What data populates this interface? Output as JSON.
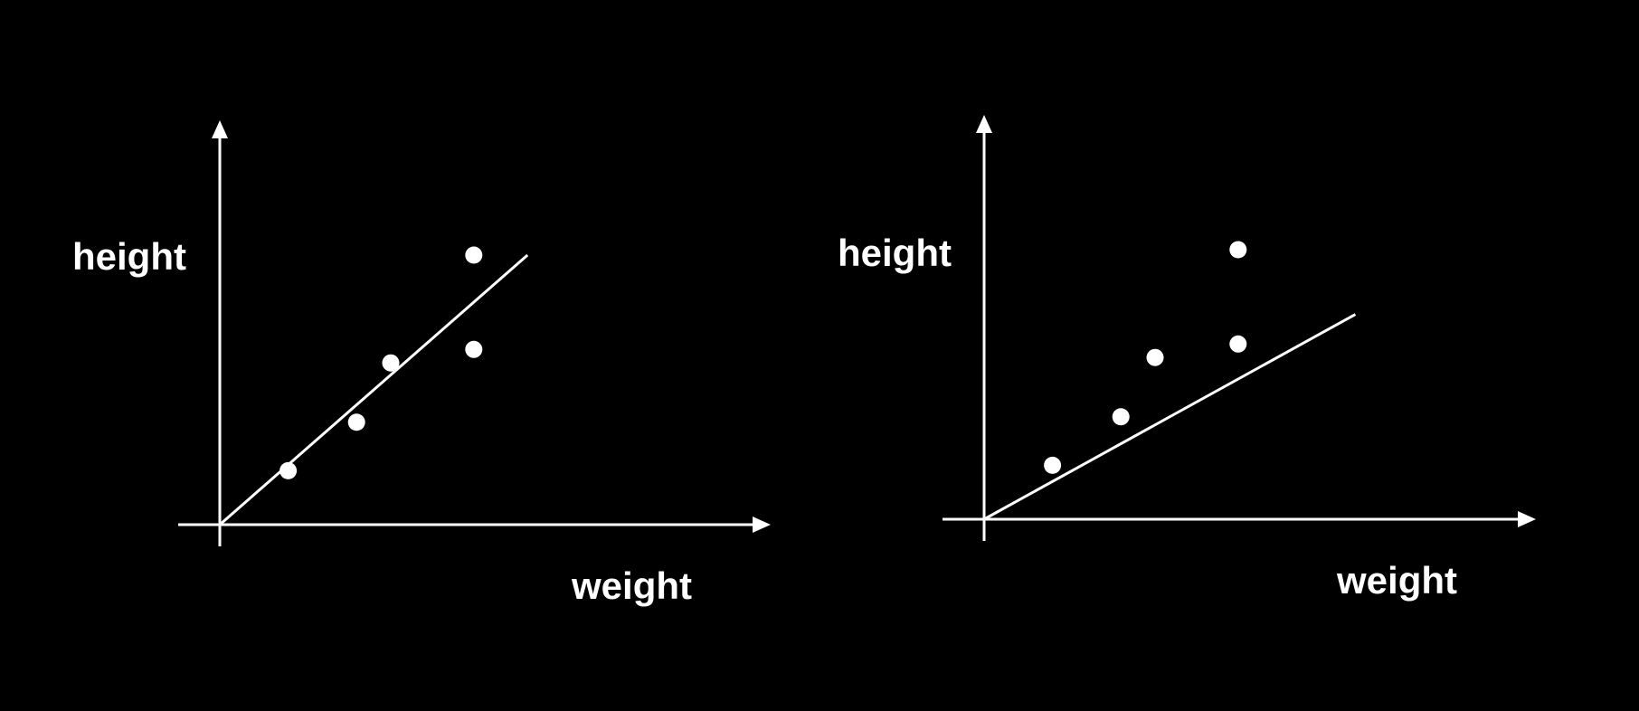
{
  "chart_data": [
    {
      "type": "scatter",
      "title": "",
      "xlabel": "weight",
      "ylabel": "height",
      "xlim": [
        0,
        100
      ],
      "ylim": [
        0,
        100
      ],
      "grid": false,
      "legend": "none",
      "points": [
        {
          "x": 14,
          "y": 20
        },
        {
          "x": 28,
          "y": 38
        },
        {
          "x": 35,
          "y": 60
        },
        {
          "x": 52,
          "y": 65
        },
        {
          "x": 52,
          "y": 100
        }
      ],
      "fit_line": {
        "x": [
          0,
          63
        ],
        "y": [
          0,
          100
        ]
      }
    },
    {
      "type": "scatter",
      "title": "",
      "xlabel": "weight",
      "ylabel": "height",
      "xlim": [
        0,
        100
      ],
      "ylim": [
        0,
        100
      ],
      "grid": false,
      "legend": "none",
      "points": [
        {
          "x": 14,
          "y": 20
        },
        {
          "x": 28,
          "y": 38
        },
        {
          "x": 35,
          "y": 60
        },
        {
          "x": 52,
          "y": 65
        },
        {
          "x": 52,
          "y": 100
        }
      ],
      "fit_line": {
        "x": [
          0,
          76
        ],
        "y": [
          0,
          76
        ]
      }
    }
  ],
  "colors": {
    "background": "#000000",
    "foreground": "#ffffff"
  }
}
